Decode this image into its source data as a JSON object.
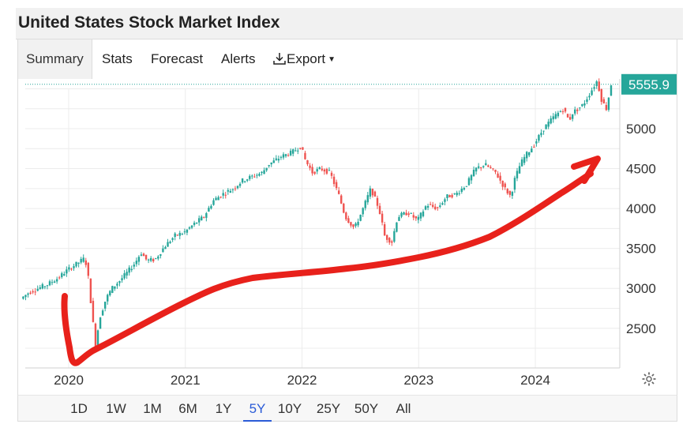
{
  "title": "United States Stock Market Index",
  "tabs": [
    {
      "label": "Summary",
      "active": true
    },
    {
      "label": "Stats"
    },
    {
      "label": "Forecast"
    },
    {
      "label": "Alerts"
    },
    {
      "label": "Export",
      "icon": "download-icon",
      "dropdown": true
    }
  ],
  "ranges": [
    "1D",
    "1W",
    "1M",
    "6M",
    "1Y",
    "5Y",
    "10Y",
    "25Y",
    "50Y",
    "All"
  ],
  "active_range": "5Y",
  "colors": {
    "up": "#26a69a",
    "down": "#ef5350",
    "price_tag": "#26a69a",
    "annotation": "#e8211b",
    "active_range": "#2a5bd7"
  },
  "chart_data": {
    "type": "line",
    "last_value_label": "5555.9",
    "last_value": 5555.9,
    "y_ticks": [
      2500,
      3000,
      3500,
      4000,
      4500,
      5000
    ],
    "y_tick_labels": [
      "2500",
      "3000",
      "3500",
      "4000",
      "4500",
      "5000"
    ],
    "x_ticks": [
      "2020",
      "2021",
      "2022",
      "2023",
      "2024"
    ],
    "ylim": [
      2000,
      5650
    ],
    "xlim": [
      2019.6,
      2024.75
    ],
    "grid": true,
    "candlestick": true,
    "series": [
      {
        "x": [
          2019.6,
          2019.67,
          2019.75,
          2019.83,
          2019.92,
          2020.0,
          2020.06,
          2020.12,
          2020.15,
          2020.18,
          2020.21,
          2020.24,
          2020.28,
          2020.33,
          2020.38,
          2020.45,
          2020.5,
          2020.58,
          2020.63,
          2020.68,
          2020.75,
          2020.83,
          2020.92,
          2021.0,
          2021.08,
          2021.17,
          2021.25,
          2021.33,
          2021.42,
          2021.5,
          2021.58,
          2021.67,
          2021.72,
          2021.78,
          2021.83,
          2021.92,
          2022.0,
          2022.04,
          2022.1,
          2022.17,
          2022.25,
          2022.33,
          2022.38,
          2022.46,
          2022.52,
          2022.6,
          2022.67,
          2022.72,
          2022.78,
          2022.83,
          2022.92,
          2023.0,
          2023.08,
          2023.17,
          2023.25,
          2023.33,
          2023.42,
          2023.5,
          2023.58,
          2023.67,
          2023.75,
          2023.8,
          2023.83,
          2023.88,
          2023.92,
          2024.0,
          2024.08,
          2024.17,
          2024.25,
          2024.3,
          2024.33,
          2024.42,
          2024.5,
          2024.54,
          2024.58,
          2024.62,
          2024.66
        ],
        "values": [
          2870,
          2950,
          3000,
          3050,
          3130,
          3230,
          3290,
          3350,
          3380,
          3120,
          2680,
          2300,
          2650,
          2870,
          3000,
          3100,
          3180,
          3320,
          3450,
          3350,
          3360,
          3520,
          3660,
          3700,
          3800,
          3900,
          4100,
          4180,
          4250,
          4350,
          4400,
          4450,
          4550,
          4600,
          4650,
          4700,
          4780,
          4600,
          4450,
          4500,
          4450,
          4150,
          3900,
          3750,
          3950,
          4250,
          4000,
          3650,
          3580,
          3900,
          3950,
          3850,
          4050,
          4000,
          4150,
          4180,
          4300,
          4500,
          4550,
          4450,
          4250,
          4150,
          4350,
          4550,
          4650,
          4800,
          5000,
          5150,
          5250,
          5100,
          5200,
          5300,
          5500,
          5600,
          5350,
          5250,
          5555.9
        ]
      }
    ]
  }
}
